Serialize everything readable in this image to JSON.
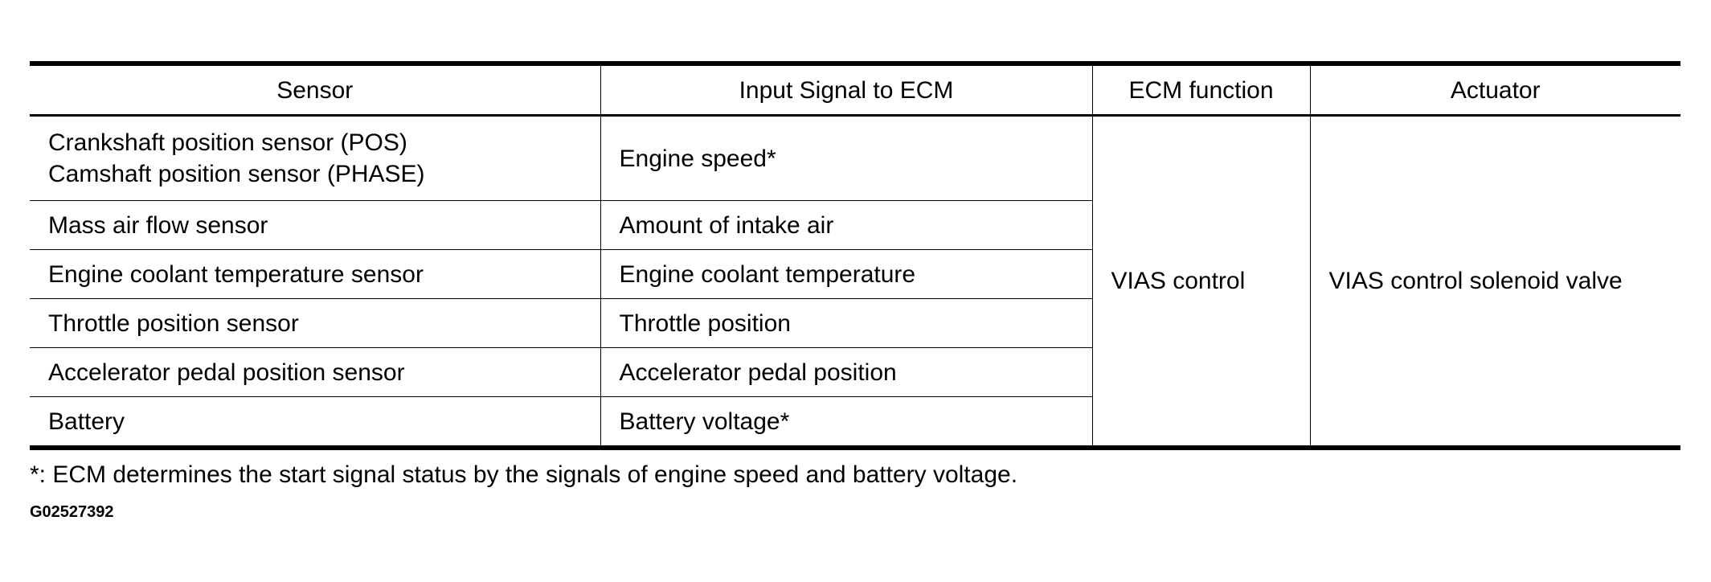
{
  "table": {
    "headers": [
      "Sensor",
      "Input Signal to ECM",
      "ECM function",
      "Actuator"
    ],
    "rows": [
      {
        "sensor": [
          "Crankshaft position sensor (POS)",
          "Camshaft position sensor (PHASE)"
        ],
        "signal": "Engine speed*"
      },
      {
        "sensor": [
          "Mass air flow sensor"
        ],
        "signal": "Amount of intake air"
      },
      {
        "sensor": [
          "Engine coolant temperature sensor"
        ],
        "signal": "Engine coolant temperature"
      },
      {
        "sensor": [
          "Throttle position sensor"
        ],
        "signal": "Throttle position"
      },
      {
        "sensor": [
          "Accelerator pedal position sensor"
        ],
        "signal": "Accelerator pedal position"
      },
      {
        "sensor": [
          "Battery"
        ],
        "signal": "Battery voltage*"
      }
    ],
    "ecm_function": "VIAS control",
    "actuator": "VIAS control solenoid valve"
  },
  "footnote": "*: ECM determines the start signal status by the signals of engine speed and battery voltage.",
  "figure_code": "G02527392"
}
